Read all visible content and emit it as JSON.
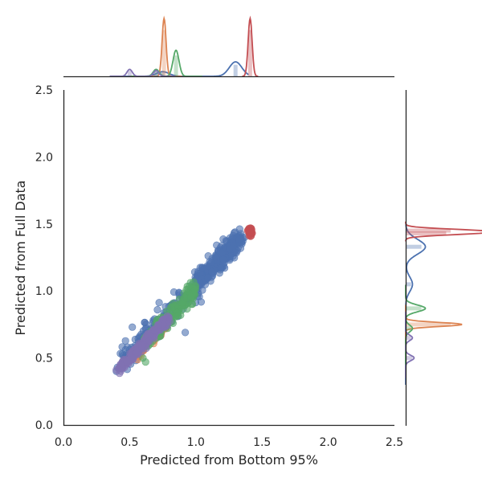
{
  "chart_data": {
    "type": "scatter",
    "subtype": "jointplot-with-marginal-distributions",
    "title": "",
    "xlabel": "Predicted from Bottom 95%",
    "ylabel": "Predicted from Full Data",
    "xlim": [
      0.0,
      2.5
    ],
    "ylim": [
      0.0,
      2.5
    ],
    "xticks": [
      "0.0",
      "0.5",
      "1.0",
      "1.5",
      "2.0",
      "2.5"
    ],
    "yticks": [
      "0.0",
      "0.5",
      "1.0",
      "1.5",
      "2.0",
      "2.5"
    ],
    "grid": false,
    "legend": "none",
    "marginals": {
      "top": "histogram + kde of x per series",
      "right": "histogram + kde of y per series"
    },
    "series": [
      {
        "color": "#4c72b0",
        "clusters": [
          {
            "x_range": [
              0.45,
              1.35
            ],
            "slope": 1.03,
            "intercept": 0.02,
            "spread": 0.045,
            "n": 260
          },
          {
            "x_range": [
              1.0,
              1.33
            ],
            "slope": 1.03,
            "intercept": 0.02,
            "spread": 0.04,
            "n": 160
          }
        ],
        "outliers": [
          [
            0.92,
            0.69
          ],
          [
            0.4,
            0.4
          ],
          [
            0.52,
            0.73
          ],
          [
            0.71,
            0.86
          ]
        ],
        "marginal_x": {
          "peaks": [
            [
              1.3,
              0.25
            ],
            [
              0.75,
              0.08
            ]
          ],
          "range": [
            0.4,
            1.35
          ]
        },
        "marginal_y": {
          "peaks": [
            [
              1.33,
              0.35
            ],
            [
              1.05,
              0.12
            ]
          ],
          "range": [
            0.35,
            1.45
          ]
        }
      },
      {
        "color": "#dd8452",
        "clusters": [
          {
            "x_range": [
              0.55,
              0.78
            ],
            "slope": 1.0,
            "intercept": -0.03,
            "spread": 0.02,
            "n": 70
          }
        ],
        "outliers": [],
        "marginal_x": {
          "peaks": [
            [
              0.76,
              1.0
            ]
          ],
          "range": [
            0.55,
            0.85
          ]
        },
        "marginal_y": {
          "peaks": [
            [
              0.75,
              1.0
            ]
          ],
          "range": [
            0.55,
            0.85
          ]
        }
      },
      {
        "color": "#55a868",
        "clusters": [
          {
            "x_range": [
              0.6,
              1.0
            ],
            "slope": 1.05,
            "intercept": -0.04,
            "spread": 0.035,
            "n": 170
          }
        ],
        "outliers": [
          [
            0.6,
            0.5
          ],
          [
            0.62,
            0.47
          ]
        ],
        "marginal_x": {
          "peaks": [
            [
              0.85,
              0.45
            ],
            [
              0.7,
              0.12
            ]
          ],
          "range": [
            0.55,
            1.0
          ]
        },
        "marginal_y": {
          "peaks": [
            [
              0.87,
              0.35
            ],
            [
              0.72,
              0.12
            ]
          ],
          "range": [
            0.5,
            1.0
          ]
        }
      },
      {
        "color": "#c44e52",
        "clusters": [
          {
            "x_range": [
              1.4,
              1.42
            ],
            "slope": 0.0,
            "intercept": 1.445,
            "spread": 0.015,
            "n": 40
          }
        ],
        "outliers": [],
        "marginal_x": {
          "peaks": [
            [
              1.41,
              1.0
            ]
          ],
          "range": [
            1.4,
            1.42
          ]
        },
        "marginal_y": {
          "peaks": [
            [
              1.45,
              1.0
            ],
            [
              1.43,
              0.9
            ]
          ],
          "range": [
            1.42,
            1.47
          ]
        }
      },
      {
        "color": "#8172b3",
        "clusters": [
          {
            "x_range": [
              0.42,
              0.8
            ],
            "slope": 1.0,
            "intercept": 0.0,
            "spread": 0.018,
            "n": 200
          }
        ],
        "outliers": [],
        "marginal_x": {
          "peaks": [
            [
              0.5,
              0.12
            ],
            [
              0.7,
              0.1
            ]
          ],
          "range": [
            0.4,
            0.8
          ]
        },
        "marginal_y": {
          "peaks": [
            [
              0.5,
              0.15
            ],
            [
              0.65,
              0.12
            ]
          ],
          "range": [
            0.4,
            0.8
          ]
        }
      }
    ]
  }
}
